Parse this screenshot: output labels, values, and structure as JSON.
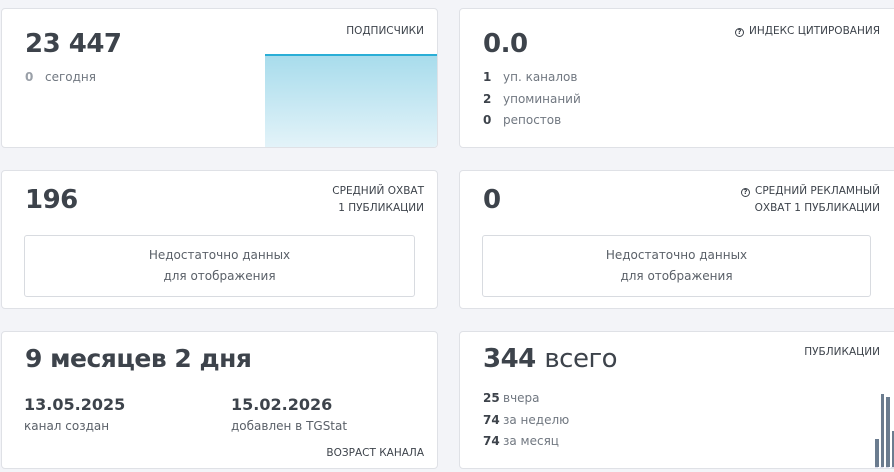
{
  "subscribers": {
    "value": "23 447",
    "label": "ПОДПИСЧИКИ",
    "today_count": "0",
    "today_label": "сегодня"
  },
  "citation": {
    "value": "0.0",
    "label": "ИНДЕКС ЦИТИРОВАНИЯ",
    "icon": "question-circle-icon",
    "rows": [
      {
        "n": "1",
        "t": "уп. каналов"
      },
      {
        "n": "2",
        "t": "упоминаний"
      },
      {
        "n": "0",
        "t": "репостов"
      }
    ]
  },
  "reach": {
    "value": "196",
    "label1": "СРЕДНИЙ ОХВАТ",
    "label2": "1 ПУБЛИКАЦИИ",
    "nodata1": "Недостаточно данных",
    "nodata2": "для отображения"
  },
  "ad_reach": {
    "value": "0",
    "label1": "СРЕДНИЙ РЕКЛАМНЫЙ",
    "label2": "ОХВАТ 1 ПУБЛИКАЦИИ",
    "nodata1": "Недостаточно данных",
    "nodata2": "для отображения"
  },
  "age": {
    "value": "9 месяцев 2 дня",
    "created_date": "13.05.2025",
    "created_label": "канал создан",
    "added_date": "15.02.2026",
    "added_label": "добавлен в TGStat",
    "label": "ВОЗРАСТ КАНАЛА"
  },
  "posts": {
    "value": "344",
    "value_suffix": "всего",
    "label": "ПУБЛИКАЦИИ",
    "rows": [
      {
        "n": "25",
        "t": "вчера"
      },
      {
        "n": "74",
        "t": "за неделю"
      },
      {
        "n": "74",
        "t": "за месяц"
      }
    ],
    "bar_values": [
      28,
      73,
      70,
      36
    ]
  },
  "colors": {
    "accent": "#2aaed6",
    "bars": "#6b7c8f"
  }
}
